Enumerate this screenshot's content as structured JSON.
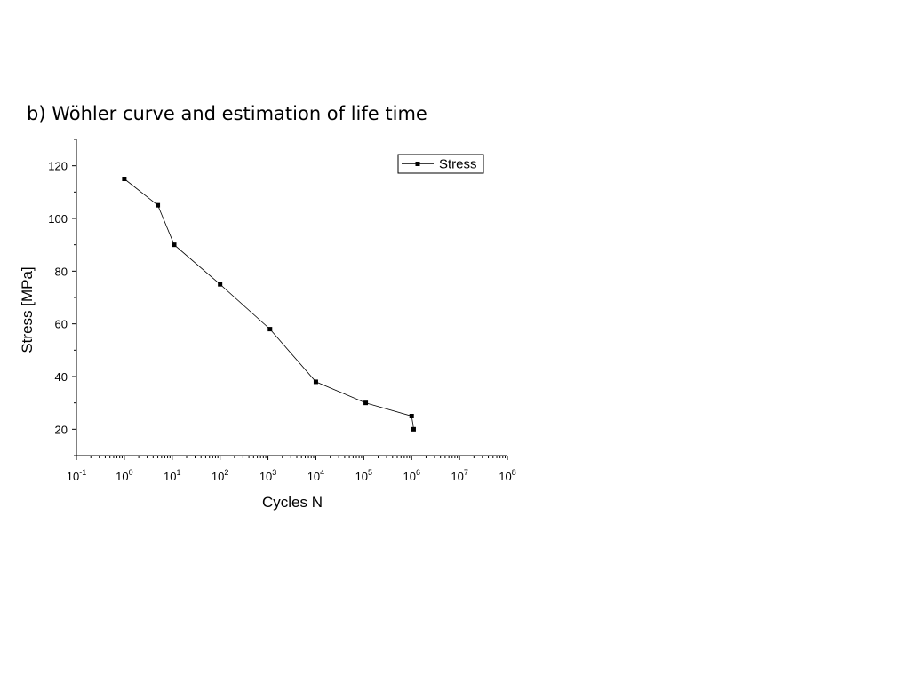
{
  "slide": {
    "title": "b) Wöhler curve and estimation of life time"
  },
  "chart_data": {
    "type": "line",
    "xscale": "log",
    "xlabel": "Cycles N",
    "ylabel": "Stress [MPa]",
    "xlim": [
      0.1,
      100000000
    ],
    "ylim": [
      10,
      130
    ],
    "xtick_exponents": [
      -1,
      0,
      1,
      2,
      3,
      4,
      5,
      6,
      7,
      8
    ],
    "yticks": [
      20,
      40,
      60,
      80,
      100,
      120
    ],
    "grid": false,
    "legend_position": "top-right",
    "marker": "square",
    "colors": {
      "line": "#000000",
      "axis": "#000000"
    },
    "series": [
      {
        "name": "Stress",
        "x": [
          1,
          5,
          11,
          100,
          1100,
          10000,
          110000,
          1000000,
          1100000
        ],
        "y": [
          115,
          105,
          90,
          75,
          58,
          38,
          30,
          25,
          20
        ]
      }
    ]
  }
}
